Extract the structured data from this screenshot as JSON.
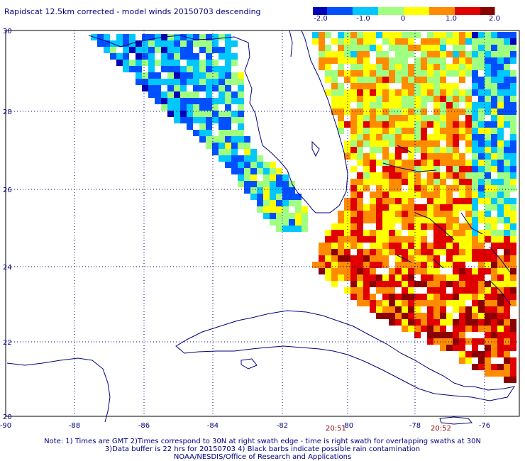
{
  "title": "Rapidscat 12.5km corrected - model winds 20150703 descending",
  "colorbar": {
    "ticks": [
      "-2.0",
      "-1.0",
      "0",
      "1.0",
      "2.0"
    ],
    "colors": [
      "#0000b4",
      "#0050ff",
      "#00c8ff",
      "#a0ff80",
      "#ffff00",
      "#ff8c00",
      "#e00000",
      "#8b0000"
    ]
  },
  "map": {
    "lon_labels": [
      "-90",
      "-88",
      "-86",
      "-84",
      "-82",
      "-80",
      "-78",
      "-76"
    ],
    "lat_labels": [
      "30",
      "28",
      "26",
      "24",
      "22",
      "20"
    ],
    "coast_color": "#000080",
    "grid_color": "#000080"
  },
  "times": {
    "t1": "20:51",
    "t2": "20:52"
  },
  "notes": {
    "line1": "Note: 1) Times are GMT 2)Times correspond to 30N at right swath edge - time is right swath for overlapping swaths at 30N",
    "line2": "3)Data buffer is 22 hrs for 20150703 4) Black barbs indicate possible rain contamination",
    "line3": "NOAA/NESDIS/Office of Research and Applications"
  }
}
